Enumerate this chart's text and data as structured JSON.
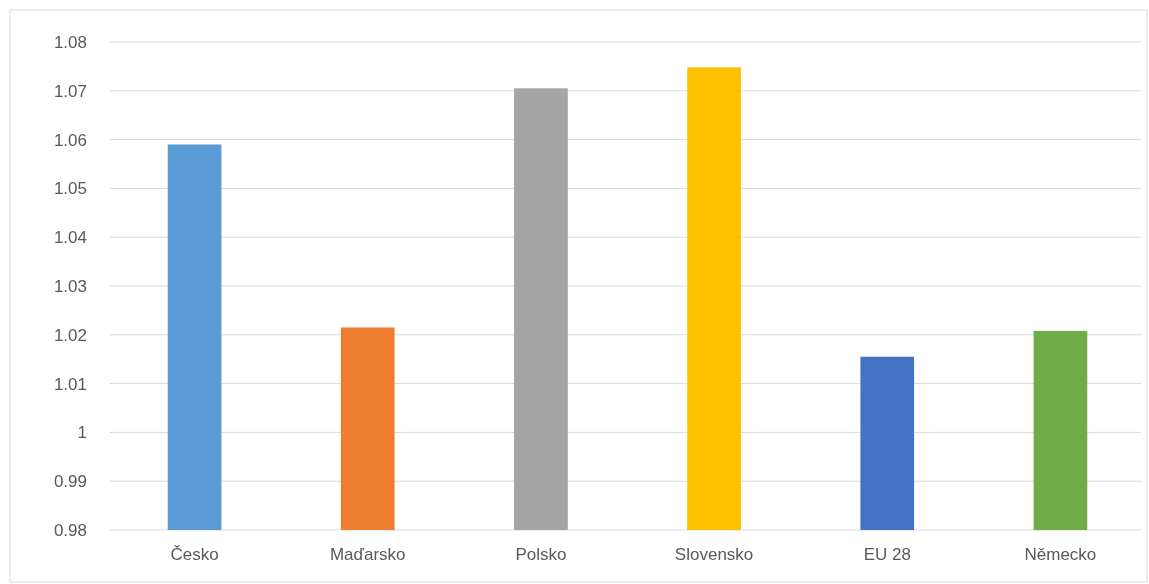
{
  "chart_data": {
    "type": "bar",
    "categories": [
      "Česko",
      "Maďarsko",
      "Polsko",
      "Slovensko",
      "EU 28",
      "Německo"
    ],
    "values": [
      1.059,
      1.0215,
      1.0705,
      1.0748,
      1.0155,
      1.0208
    ],
    "colors": [
      "#5b9bd5",
      "#ed7d31",
      "#a5a5a5",
      "#ffc000",
      "#4472c4",
      "#70ad47"
    ],
    "ylim": [
      0.98,
      1.08
    ],
    "yticks": [
      0.98,
      0.99,
      1,
      1.01,
      1.02,
      1.03,
      1.04,
      1.05,
      1.06,
      1.07,
      1.08
    ],
    "grid": "y"
  }
}
